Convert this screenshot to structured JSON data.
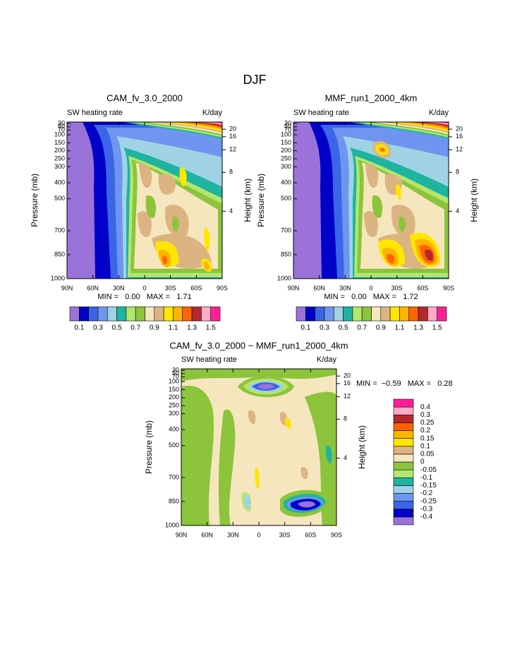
{
  "title": "DJF",
  "chart_data": [
    {
      "type": "contour",
      "title": "CAM_fv_3.0_2000",
      "subtitle": "SW heating rate",
      "units": "K/day",
      "stats": "MIN =   0.00   MAX =   1.71",
      "xlim": [
        90,
        -90
      ],
      "xticks": [
        {
          "value": 90,
          "label": "90N"
        },
        {
          "value": 60,
          "label": "60N"
        },
        {
          "value": 30,
          "label": "30N"
        },
        0,
        {
          "value": -30,
          "label": "30S"
        },
        {
          "value": -60,
          "label": "60S"
        },
        {
          "value": -90,
          "label": "90S"
        }
      ],
      "ylabel": "Pressure (mb)",
      "ylim": [
        1000,
        20
      ],
      "yticks": [
        30,
        50,
        70,
        100,
        150,
        200,
        250,
        300,
        400,
        500,
        700,
        850,
        1000
      ],
      "y2label": "Height (km)",
      "y2lim": [
        0,
        28.6
      ],
      "y2ticks": [
        4,
        8,
        12,
        16,
        20
      ],
      "colorbar": "horizontal",
      "levels": [
        0.1,
        0.3,
        0.5,
        0.7,
        0.9,
        1.1,
        1.3,
        1.5
      ],
      "colors": [
        "#9b72d9",
        "#0000c8",
        "#3c64e6",
        "#6e96f0",
        "#a0d2e6",
        "#1eb4a0",
        "#b4e66e",
        "#8cc43c",
        "#f5e6be",
        "#dcb482",
        "#ffe600",
        "#ffb400",
        "#ff6400",
        "#b4282d",
        "#ffaac8",
        "#ff1e96"
      ]
    },
    {
      "type": "contour",
      "title": "MMF_run1_2000_4km",
      "subtitle": "SW heating rate",
      "units": "K/day",
      "stats": "MIN =   0.00   MAX =   1.72",
      "xlim": [
        90,
        -90
      ],
      "xticks": [
        {
          "value": 90,
          "label": "90N"
        },
        {
          "value": 60,
          "label": "60N"
        },
        {
          "value": 30,
          "label": "30N"
        },
        0,
        {
          "value": -30,
          "label": "30S"
        },
        {
          "value": -60,
          "label": "60S"
        },
        {
          "value": -90,
          "label": "90S"
        }
      ],
      "ylabel": "Pressure (mb)",
      "ylim": [
        1000,
        20
      ],
      "yticks": [
        30,
        50,
        70,
        100,
        150,
        200,
        250,
        300,
        400,
        500,
        700,
        850,
        1000
      ],
      "y2label": "Height (km)",
      "y2lim": [
        0,
        28.6
      ],
      "y2ticks": [
        4,
        8,
        12,
        16,
        20
      ],
      "colorbar": "horizontal",
      "levels": [
        0.1,
        0.3,
        0.5,
        0.7,
        0.9,
        1.1,
        1.3,
        1.5
      ],
      "colors": [
        "#9b72d9",
        "#0000c8",
        "#3c64e6",
        "#6e96f0",
        "#a0d2e6",
        "#1eb4a0",
        "#b4e66e",
        "#8cc43c",
        "#f5e6be",
        "#dcb482",
        "#ffe600",
        "#ffb400",
        "#ff6400",
        "#b4282d",
        "#ffaac8",
        "#ff1e96"
      ]
    },
    {
      "type": "contour",
      "title": "CAM_fv_3.0_2000 − MMF_run1_2000_4km",
      "subtitle": "SW heating rate",
      "units": "K/day",
      "stats": "MIN =  −0.59   MAX =   0.28",
      "xlim": [
        90,
        -90
      ],
      "xticks": [
        {
          "value": 90,
          "label": "90N"
        },
        {
          "value": 60,
          "label": "60N"
        },
        {
          "value": 30,
          "label": "30N"
        },
        0,
        {
          "value": -30,
          "label": "30S"
        },
        {
          "value": -60,
          "label": "60S"
        },
        {
          "value": -90,
          "label": "90S"
        }
      ],
      "ylabel": "Pressure (mb)",
      "ylim": [
        1000,
        20
      ],
      "yticks": [
        30,
        50,
        70,
        100,
        150,
        200,
        250,
        300,
        400,
        500,
        700,
        850,
        1000
      ],
      "y2label": "Height (km)",
      "y2lim": [
        0,
        28.6
      ],
      "y2ticks": [
        4,
        8,
        12,
        16,
        20
      ],
      "colorbar": "vertical",
      "levels": [
        -0.4,
        -0.3,
        -0.25,
        -0.2,
        -0.15,
        -0.1,
        -0.05,
        0,
        0.05,
        0.1,
        0.15,
        0.2,
        0.25,
        0.3,
        0.4
      ],
      "colors": [
        "#9b72d9",
        "#0000c8",
        "#3c64e6",
        "#6e96f0",
        "#a0d2e6",
        "#1eb4a0",
        "#b4e66e",
        "#8cc43c",
        "#f5e6be",
        "#dcb482",
        "#ffe600",
        "#ffb400",
        "#ff6400",
        "#b4282d",
        "#ffaac8",
        "#ff1e96"
      ]
    }
  ]
}
